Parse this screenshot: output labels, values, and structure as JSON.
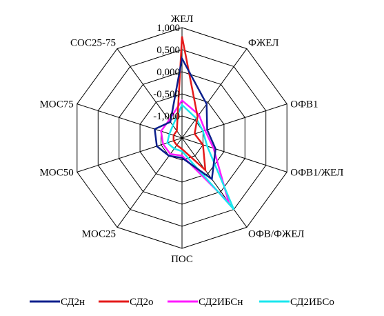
{
  "chart_data": {
    "type": "radar",
    "categories": [
      "ЖЕЛ",
      "ФЖЕЛ",
      "ОФВ1",
      "ОФВ1/ЖЕЛ",
      "ОФВ/ФЖЕЛ",
      "ПОС",
      "МОС25",
      "МОС50",
      "МОС75",
      "СОС25-75"
    ],
    "tick_labels": [
      "1,000",
      "0,500",
      "0,000",
      "-0,500",
      "-1,000"
    ],
    "r_range": [
      -1.5,
      1.0
    ],
    "grid": true,
    "legend_position": "bottom",
    "series": [
      {
        "name": "СД2н",
        "color": "#0b1f8c",
        "values": [
          0.3,
          -0.55,
          -0.9,
          -0.7,
          -0.35,
          -1.05,
          -1.0,
          -0.9,
          -0.85,
          -1.05
        ]
      },
      {
        "name": "СД2о",
        "color": "#e41a1a",
        "values": [
          0.8,
          -0.9,
          -1.2,
          -1.0,
          -0.6,
          -1.25,
          -1.3,
          -1.3,
          -1.3,
          -1.3
        ]
      },
      {
        "name": "СД2ИБСн",
        "color": "#ff1aff",
        "values": [
          -0.65,
          -0.85,
          -0.95,
          -0.75,
          0.3,
          -1.1,
          -1.05,
          -1.05,
          -1.0,
          -1.0
        ]
      },
      {
        "name": "СД2ИБСо",
        "color": "#1ae6ee",
        "values": [
          -0.75,
          -0.95,
          -1.0,
          -0.9,
          0.5,
          -1.2,
          -1.2,
          -1.15,
          -1.2,
          -1.15
        ]
      }
    ]
  }
}
